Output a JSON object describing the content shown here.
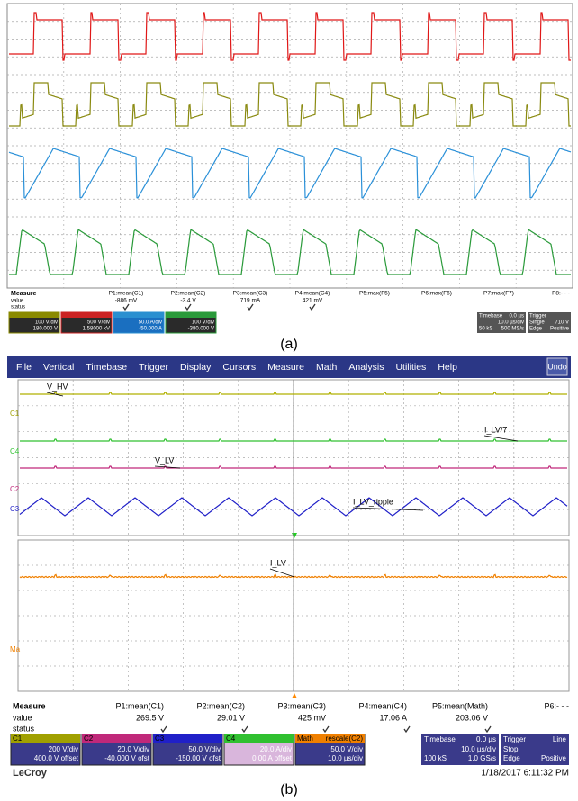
{
  "caption_a": "(a)",
  "caption_b": "(b)",
  "panel_a": {
    "measure": {
      "title": "Measure",
      "row_labels": [
        "value",
        "status"
      ],
      "params": [
        {
          "name": "P1:mean(C1)",
          "value": "-886 mV"
        },
        {
          "name": "P2:mean(C2)",
          "value": "-3.4 V"
        },
        {
          "name": "P3:mean(C3)",
          "value": "719 mA"
        },
        {
          "name": "P4:mean(C4)",
          "value": "421 mV"
        },
        {
          "name": "P5:max(F5)"
        },
        {
          "name": "P6:max(F6)"
        },
        {
          "name": "P7:max(F7)"
        },
        {
          "name": "P8:- - -"
        }
      ]
    },
    "channels": [
      {
        "scale": "100 V/div",
        "offset": "180.000 V",
        "color": "#8a8a00"
      },
      {
        "scale": "500 V/div",
        "offset": "1.58000 kV",
        "color": "#cc2222"
      },
      {
        "scale": "50.0 A/div",
        "offset": "-50.000 A",
        "color": "#2a8fd0"
      },
      {
        "scale": "100 V/div",
        "offset": "-380.000 V",
        "color": "#2a9a3a"
      }
    ],
    "timebase": {
      "title": "Timebase",
      "delay": "0.0 µs",
      "per_div": "10.0 µs/div",
      "samples": "50 kS",
      "rate": "500 MS/s"
    },
    "trigger": {
      "title": "Trigger",
      "mode": "Single",
      "type": "Edge",
      "level": "710 V",
      "slope": "Positive"
    }
  },
  "panel_b": {
    "menu": [
      "File",
      "Vertical",
      "Timebase",
      "Trigger",
      "Display",
      "Cursors",
      "Measure",
      "Math",
      "Analysis",
      "Utilities",
      "Help"
    ],
    "undo": "Undo",
    "trace_labels": [
      "V_HV",
      "I_LV/7",
      "V_LV",
      "I_LV_ripple",
      "I_LV"
    ],
    "channel_markers": [
      "C1",
      "C4",
      "C2",
      "C3",
      "Ma"
    ],
    "measure": {
      "title": "Measure",
      "row_labels": [
        "value",
        "status"
      ],
      "params": [
        {
          "name": "P1:mean(C1)",
          "value": "269.5 V"
        },
        {
          "name": "P2:mean(C2)",
          "value": "29.01 V"
        },
        {
          "name": "P3:mean(C3)",
          "value": "425 mV"
        },
        {
          "name": "P4:mean(C4)",
          "value": "17.06 A"
        },
        {
          "name": "P5:mean(Math)",
          "value": "203.06 V"
        },
        {
          "name": "P6:- - -"
        }
      ]
    },
    "channels": [
      {
        "label": "C1",
        "scale": "200 V/div",
        "offset": "400.0 V offset",
        "color": "#a0a000"
      },
      {
        "label": "C2",
        "scale": "20.0 V/div",
        "offset": "-40.000 V ofst",
        "color": "#c0287a"
      },
      {
        "label": "C3",
        "scale": "50.0 V/div",
        "offset": "-150.00 V ofst",
        "color": "#2020c8"
      },
      {
        "label": "C4",
        "scale": "20.0 A/div",
        "offset": "0.00 A offset",
        "color": "#30c030"
      },
      {
        "label": "Math",
        "title": "rescale(C2)",
        "scale": "50.0 V/div",
        "offset": "10.0 µs/div",
        "color": "#f08000"
      }
    ],
    "timebase": {
      "title": "Timebase",
      "delay": "0.0 µs",
      "per_div": "10.0 µs/div",
      "samples": "100 kS",
      "rate": "1.0 GS/s"
    },
    "trigger": {
      "title": "Trigger",
      "source": "Line",
      "mode": "Stop",
      "type": "Edge",
      "slope": "Positive"
    },
    "brand": "LeCroy",
    "timestamp": "1/18/2017 6:11:32 PM"
  }
}
